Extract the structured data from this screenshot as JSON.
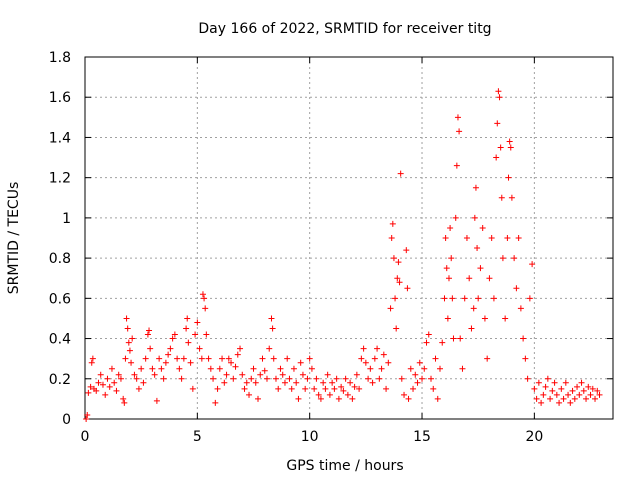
{
  "chart_data": {
    "type": "scatter",
    "title": "Day 166 of 2022, SRMTID for receiver titg",
    "xlabel": "GPS time / hours",
    "ylabel": "SRMTID / TECUs",
    "xlim": [
      0,
      23.5
    ],
    "ylim": [
      0,
      1.8
    ],
    "xticks": [
      0,
      5,
      10,
      15,
      20
    ],
    "xtick_labels": [
      "0",
      "5",
      "10",
      "15",
      "20"
    ],
    "yticks": [
      0,
      0.2,
      0.4,
      0.6,
      0.8,
      1.0,
      1.2,
      1.4,
      1.6,
      1.8
    ],
    "ytick_labels": [
      "0",
      "0.2",
      "0.4",
      "0.6",
      "0.8",
      "1",
      "1.2",
      "1.4",
      "1.6",
      "1.8"
    ],
    "grid": true,
    "marker": "plus",
    "color": "#ff0000",
    "series": [
      {
        "name": "SRMTID",
        "points": [
          [
            0.05,
            0.0
          ],
          [
            0.1,
            0.02
          ],
          [
            0.15,
            0.13
          ],
          [
            0.25,
            0.16
          ],
          [
            0.3,
            0.28
          ],
          [
            0.35,
            0.3
          ],
          [
            0.4,
            0.15
          ],
          [
            0.5,
            0.14
          ],
          [
            0.6,
            0.18
          ],
          [
            0.7,
            0.22
          ],
          [
            0.8,
            0.17
          ],
          [
            0.9,
            0.12
          ],
          [
            1.0,
            0.2
          ],
          [
            1.1,
            0.16
          ],
          [
            1.2,
            0.25
          ],
          [
            1.3,
            0.18
          ],
          [
            1.4,
            0.14
          ],
          [
            1.5,
            0.22
          ],
          [
            1.6,
            0.2
          ],
          [
            1.7,
            0.1
          ],
          [
            1.75,
            0.08
          ],
          [
            1.8,
            0.3
          ],
          [
            1.85,
            0.5
          ],
          [
            1.9,
            0.45
          ],
          [
            1.95,
            0.38
          ],
          [
            2.0,
            0.34
          ],
          [
            2.05,
            0.28
          ],
          [
            2.1,
            0.4
          ],
          [
            2.2,
            0.22
          ],
          [
            2.3,
            0.2
          ],
          [
            2.4,
            0.15
          ],
          [
            2.5,
            0.25
          ],
          [
            2.6,
            0.18
          ],
          [
            2.7,
            0.3
          ],
          [
            2.8,
            0.42
          ],
          [
            2.85,
            0.44
          ],
          [
            2.9,
            0.35
          ],
          [
            3.0,
            0.25
          ],
          [
            3.1,
            0.22
          ],
          [
            3.2,
            0.09
          ],
          [
            3.3,
            0.3
          ],
          [
            3.4,
            0.25
          ],
          [
            3.5,
            0.2
          ],
          [
            3.6,
            0.28
          ],
          [
            3.7,
            0.32
          ],
          [
            3.8,
            0.35
          ],
          [
            3.9,
            0.4
          ],
          [
            4.0,
            0.42
          ],
          [
            4.1,
            0.3
          ],
          [
            4.2,
            0.25
          ],
          [
            4.3,
            0.2
          ],
          [
            4.4,
            0.3
          ],
          [
            4.5,
            0.45
          ],
          [
            4.55,
            0.5
          ],
          [
            4.6,
            0.38
          ],
          [
            4.7,
            0.28
          ],
          [
            4.8,
            0.15
          ],
          [
            4.9,
            0.42
          ],
          [
            5.0,
            0.48
          ],
          [
            5.1,
            0.35
          ],
          [
            5.2,
            0.3
          ],
          [
            5.25,
            0.62
          ],
          [
            5.3,
            0.6
          ],
          [
            5.35,
            0.55
          ],
          [
            5.4,
            0.42
          ],
          [
            5.5,
            0.3
          ],
          [
            5.6,
            0.25
          ],
          [
            5.7,
            0.2
          ],
          [
            5.8,
            0.08
          ],
          [
            5.9,
            0.15
          ],
          [
            6.0,
            0.25
          ],
          [
            6.1,
            0.3
          ],
          [
            6.2,
            0.18
          ],
          [
            6.3,
            0.22
          ],
          [
            6.4,
            0.3
          ],
          [
            6.5,
            0.28
          ],
          [
            6.6,
            0.2
          ],
          [
            6.7,
            0.26
          ],
          [
            6.8,
            0.32
          ],
          [
            6.9,
            0.35
          ],
          [
            7.0,
            0.22
          ],
          [
            7.1,
            0.15
          ],
          [
            7.2,
            0.18
          ],
          [
            7.3,
            0.12
          ],
          [
            7.4,
            0.2
          ],
          [
            7.5,
            0.25
          ],
          [
            7.6,
            0.18
          ],
          [
            7.7,
            0.1
          ],
          [
            7.8,
            0.22
          ],
          [
            7.9,
            0.3
          ],
          [
            8.0,
            0.24
          ],
          [
            8.1,
            0.2
          ],
          [
            8.2,
            0.35
          ],
          [
            8.3,
            0.5
          ],
          [
            8.35,
            0.45
          ],
          [
            8.4,
            0.3
          ],
          [
            8.5,
            0.2
          ],
          [
            8.6,
            0.15
          ],
          [
            8.7,
            0.25
          ],
          [
            8.8,
            0.22
          ],
          [
            8.9,
            0.18
          ],
          [
            9.0,
            0.3
          ],
          [
            9.1,
            0.2
          ],
          [
            9.2,
            0.15
          ],
          [
            9.3,
            0.25
          ],
          [
            9.4,
            0.18
          ],
          [
            9.5,
            0.1
          ],
          [
            9.6,
            0.28
          ],
          [
            9.7,
            0.22
          ],
          [
            9.8,
            0.15
          ],
          [
            9.9,
            0.2
          ],
          [
            10.0,
            0.3
          ],
          [
            10.1,
            0.25
          ],
          [
            10.2,
            0.15
          ],
          [
            10.3,
            0.2
          ],
          [
            10.4,
            0.12
          ],
          [
            10.5,
            0.1
          ],
          [
            10.6,
            0.18
          ],
          [
            10.7,
            0.15
          ],
          [
            10.8,
            0.22
          ],
          [
            10.9,
            0.12
          ],
          [
            11.0,
            0.18
          ],
          [
            11.1,
            0.15
          ],
          [
            11.2,
            0.2
          ],
          [
            11.3,
            0.1
          ],
          [
            11.4,
            0.16
          ],
          [
            11.5,
            0.14
          ],
          [
            11.6,
            0.2
          ],
          [
            11.7,
            0.12
          ],
          [
            11.8,
            0.18
          ],
          [
            11.9,
            0.1
          ],
          [
            12.0,
            0.16
          ],
          [
            12.1,
            0.22
          ],
          [
            12.2,
            0.15
          ],
          [
            12.3,
            0.3
          ],
          [
            12.4,
            0.35
          ],
          [
            12.5,
            0.28
          ],
          [
            12.6,
            0.2
          ],
          [
            12.7,
            0.25
          ],
          [
            12.8,
            0.18
          ],
          [
            12.9,
            0.3
          ],
          [
            13.0,
            0.35
          ],
          [
            13.1,
            0.2
          ],
          [
            13.2,
            0.25
          ],
          [
            13.3,
            0.32
          ],
          [
            13.4,
            0.15
          ],
          [
            13.5,
            0.28
          ],
          [
            13.6,
            0.55
          ],
          [
            13.65,
            0.9
          ],
          [
            13.7,
            0.97
          ],
          [
            13.75,
            0.8
          ],
          [
            13.8,
            0.6
          ],
          [
            13.85,
            0.45
          ],
          [
            13.9,
            0.7
          ],
          [
            13.95,
            0.78
          ],
          [
            14.0,
            0.68
          ],
          [
            14.05,
            1.22
          ],
          [
            14.1,
            0.2
          ],
          [
            14.2,
            0.12
          ],
          [
            14.3,
            0.84
          ],
          [
            14.35,
            0.65
          ],
          [
            14.4,
            0.1
          ],
          [
            14.5,
            0.25
          ],
          [
            14.6,
            0.15
          ],
          [
            14.7,
            0.22
          ],
          [
            14.8,
            0.18
          ],
          [
            14.9,
            0.28
          ],
          [
            15.0,
            0.2
          ],
          [
            15.1,
            0.25
          ],
          [
            15.2,
            0.38
          ],
          [
            15.3,
            0.42
          ],
          [
            15.4,
            0.2
          ],
          [
            15.5,
            0.15
          ],
          [
            15.6,
            0.3
          ],
          [
            15.7,
            0.1
          ],
          [
            15.8,
            0.25
          ],
          [
            15.9,
            0.38
          ],
          [
            16.0,
            0.6
          ],
          [
            16.05,
            0.9
          ],
          [
            16.1,
            0.75
          ],
          [
            16.15,
            0.5
          ],
          [
            16.2,
            0.7
          ],
          [
            16.25,
            0.95
          ],
          [
            16.3,
            0.8
          ],
          [
            16.35,
            0.6
          ],
          [
            16.4,
            0.4
          ],
          [
            16.5,
            1.0
          ],
          [
            16.55,
            1.26
          ],
          [
            16.6,
            1.5
          ],
          [
            16.65,
            1.43
          ],
          [
            16.7,
            0.4
          ],
          [
            16.8,
            0.25
          ],
          [
            16.9,
            0.6
          ],
          [
            17.0,
            0.9
          ],
          [
            17.1,
            0.7
          ],
          [
            17.2,
            0.45
          ],
          [
            17.3,
            0.55
          ],
          [
            17.35,
            1.0
          ],
          [
            17.4,
            1.15
          ],
          [
            17.45,
            0.85
          ],
          [
            17.5,
            0.6
          ],
          [
            17.6,
            0.75
          ],
          [
            17.7,
            0.95
          ],
          [
            17.8,
            0.5
          ],
          [
            17.9,
            0.3
          ],
          [
            18.0,
            0.7
          ],
          [
            18.1,
            0.9
          ],
          [
            18.2,
            0.6
          ],
          [
            18.3,
            1.3
          ],
          [
            18.35,
            1.47
          ],
          [
            18.4,
            1.63
          ],
          [
            18.45,
            1.6
          ],
          [
            18.5,
            1.35
          ],
          [
            18.55,
            1.1
          ],
          [
            18.6,
            0.8
          ],
          [
            18.7,
            0.5
          ],
          [
            18.8,
            0.9
          ],
          [
            18.85,
            1.2
          ],
          [
            18.9,
            1.38
          ],
          [
            18.95,
            1.35
          ],
          [
            19.0,
            1.1
          ],
          [
            19.1,
            0.8
          ],
          [
            19.2,
            0.65
          ],
          [
            19.3,
            0.9
          ],
          [
            19.4,
            0.55
          ],
          [
            19.5,
            0.4
          ],
          [
            19.6,
            0.3
          ],
          [
            19.7,
            0.2
          ],
          [
            19.8,
            0.6
          ],
          [
            19.9,
            0.77
          ],
          [
            20.0,
            0.15
          ],
          [
            20.1,
            0.1
          ],
          [
            20.2,
            0.18
          ],
          [
            20.3,
            0.08
          ],
          [
            20.4,
            0.12
          ],
          [
            20.5,
            0.16
          ],
          [
            20.6,
            0.2
          ],
          [
            20.7,
            0.1
          ],
          [
            20.8,
            0.14
          ],
          [
            20.9,
            0.18
          ],
          [
            21.0,
            0.12
          ],
          [
            21.1,
            0.08
          ],
          [
            21.2,
            0.15
          ],
          [
            21.3,
            0.1
          ],
          [
            21.4,
            0.18
          ],
          [
            21.5,
            0.12
          ],
          [
            21.6,
            0.08
          ],
          [
            21.7,
            0.14
          ],
          [
            21.8,
            0.1
          ],
          [
            21.9,
            0.16
          ],
          [
            22.0,
            0.12
          ],
          [
            22.1,
            0.18
          ],
          [
            22.2,
            0.14
          ],
          [
            22.3,
            0.1
          ],
          [
            22.4,
            0.16
          ],
          [
            22.5,
            0.12
          ],
          [
            22.6,
            0.15
          ],
          [
            22.7,
            0.1
          ],
          [
            22.8,
            0.14
          ],
          [
            22.9,
            0.12
          ]
        ]
      }
    ]
  }
}
